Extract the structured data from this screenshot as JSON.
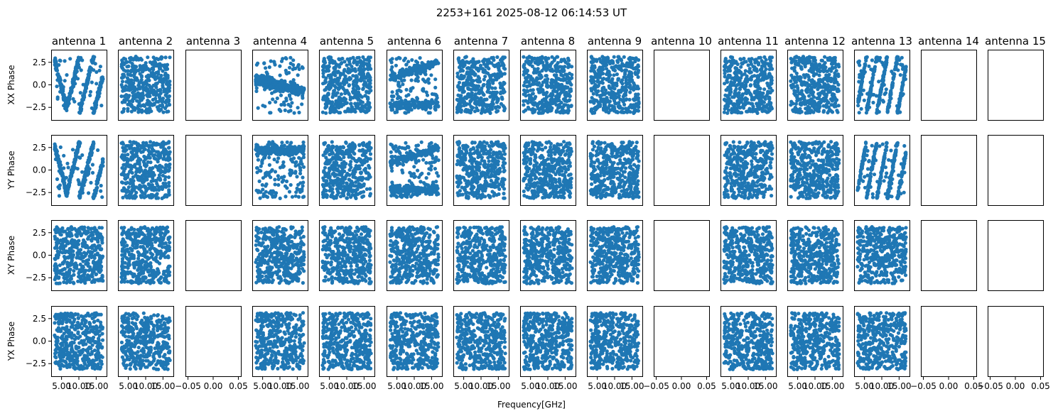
{
  "chart_data": {
    "type": "scatter",
    "title": "2253+161 2025-08-12 06:14:53 UT",
    "xlabel": "Frequency[GHz]",
    "rows": [
      {
        "ylabel": "XX Phase"
      },
      {
        "ylabel": "YY Phase"
      },
      {
        "ylabel": "XY Phase"
      },
      {
        "ylabel": "YX Phase"
      }
    ],
    "antennas": [
      "antenna 1",
      "antenna 2",
      "antenna 3",
      "antenna 4",
      "antenna 5",
      "antenna 6",
      "antenna 7",
      "antenna 8",
      "antenna 9",
      "antenna 10",
      "antenna 11",
      "antenna 12",
      "antenna 13",
      "antenna 14",
      "antenna 15"
    ],
    "empty_antennas": [
      "antenna 3",
      "antenna 10",
      "antenna 14",
      "antenna 15"
    ],
    "xlim": [
      2,
      18
    ],
    "ylim": [
      -3.9,
      3.9
    ],
    "yticks": [
      -2.5,
      0.0,
      2.5
    ],
    "yticks_row2": [
      -2.5,
      0.0,
      2.5
    ],
    "yticklabels": [
      "−2.5",
      "0.0",
      "2.5"
    ],
    "xticks": [
      5,
      10,
      15
    ],
    "xticklabels": [
      "5.00",
      "10.00",
      "15.00"
    ],
    "empty_xticks": [
      -0.05,
      0.0,
      0.05
    ],
    "empty_xticklabels": [
      "−0.05",
      "0.00",
      "0.05"
    ],
    "series_color": "#1f77b4",
    "point_count_per_panel": 420,
    "phase_range": [
      -3.1416,
      3.1416
    ],
    "freq_range": [
      3.0,
      17.0
    ],
    "patterns": {
      "antenna 1": [
        "wrap-vee",
        "wrap-vee",
        "random",
        "random"
      ],
      "antenna 4": [
        "cluster-slope",
        "cluster-high",
        "random",
        "random"
      ],
      "antenna 6": [
        "drift",
        "drift",
        "random",
        "random"
      ],
      "antenna 13": [
        "wrap-steep",
        "wrap-steep",
        "random",
        "random"
      ]
    }
  }
}
